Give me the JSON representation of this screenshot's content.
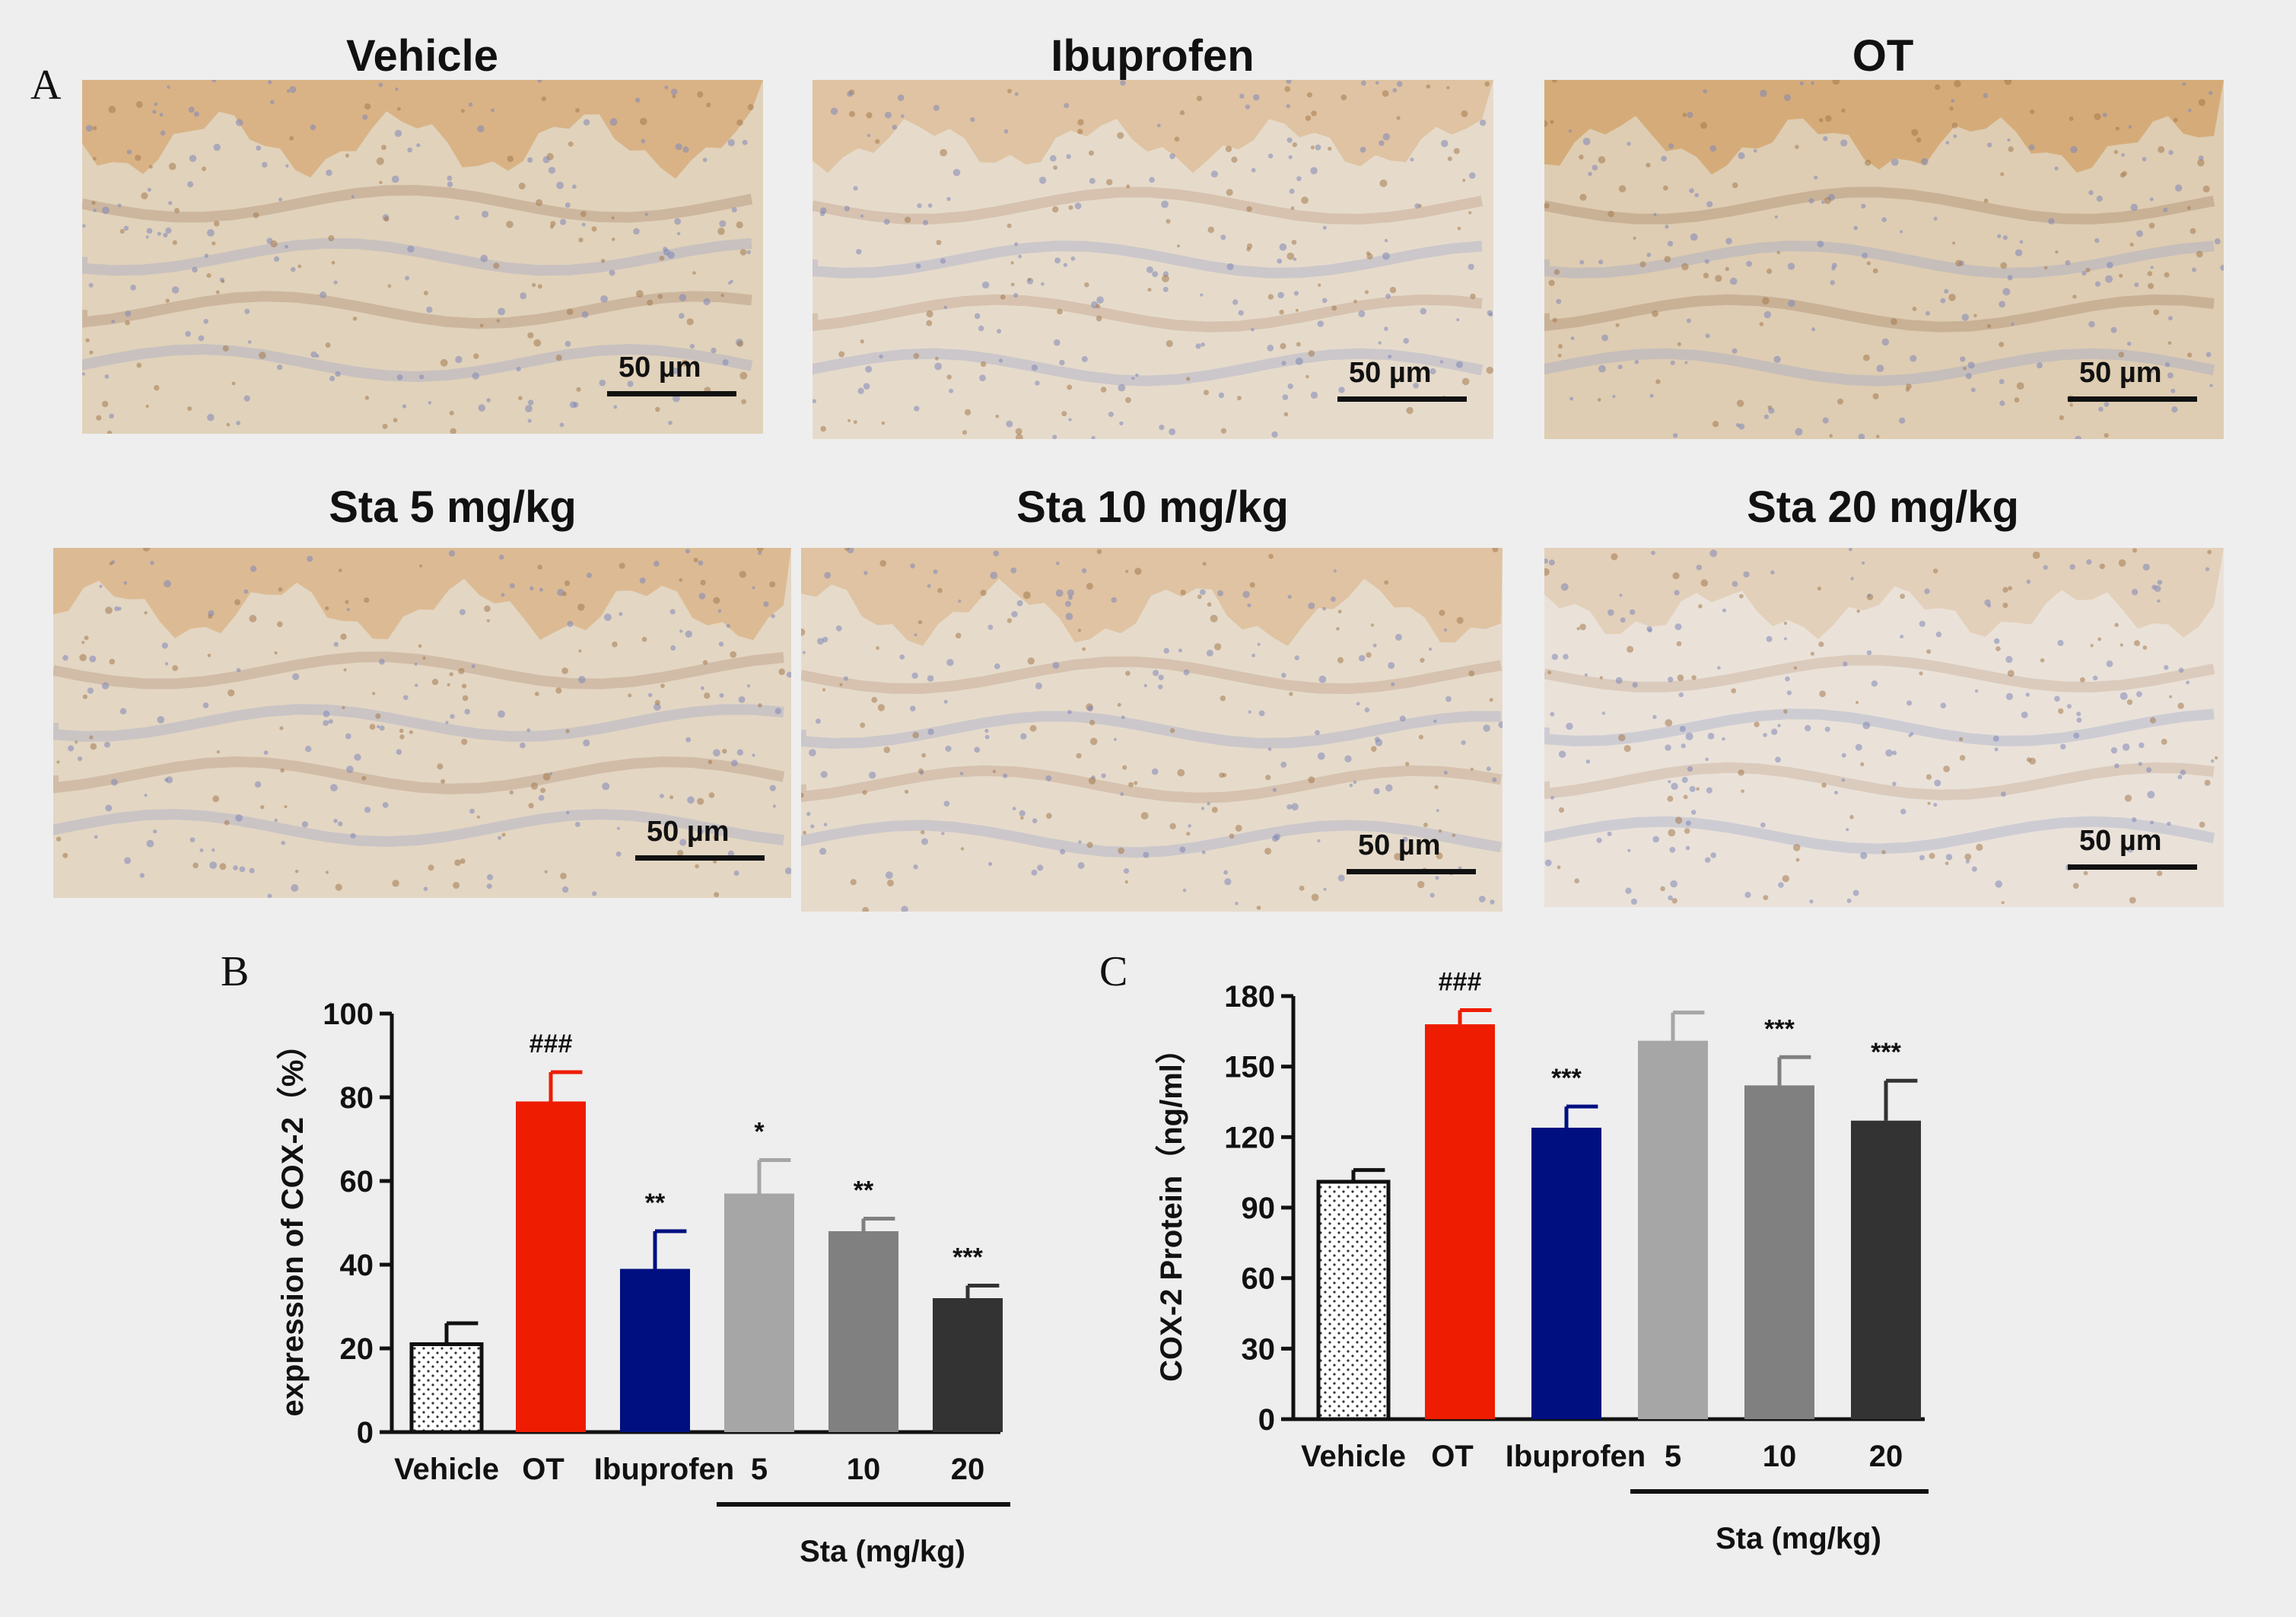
{
  "panel_a": {
    "letter": "A",
    "images": [
      {
        "title": "Vehicle",
        "scale": "50 µm",
        "stain": 0.75
      },
      {
        "title": "Ibuprofen",
        "scale": "50 µm",
        "stain": 0.45
      },
      {
        "title": "OT",
        "scale": "50 µm",
        "stain": 0.9
      },
      {
        "title": "Sta 5 mg/kg",
        "scale": "50 µm",
        "stain": 0.6
      },
      {
        "title": "Sta 10 mg/kg",
        "scale": "50 µm",
        "stain": 0.45
      },
      {
        "title": "Sta 20 mg/kg",
        "scale": "50 µm",
        "stain": 0.2
      }
    ]
  },
  "chart_data": [
    {
      "panel": "B",
      "type": "bar",
      "ylabel": "expression of COX-2（%）",
      "ylim": [
        0,
        100
      ],
      "yticks": [
        0,
        20,
        40,
        60,
        80,
        100
      ],
      "categories": [
        "Vehicle",
        "OT",
        "Ibuprofen",
        "5",
        "10",
        "20"
      ],
      "values": [
        21,
        79,
        39,
        57,
        48,
        32
      ],
      "errors": [
        5,
        7,
        9,
        8,
        3,
        3
      ],
      "annotations": [
        "",
        "###",
        "**",
        "*",
        "**",
        "***"
      ],
      "colors": [
        "#ffffff",
        "#ee1c00",
        "#000f80",
        "#a6a6a6",
        "#808080",
        "#333333"
      ],
      "group_label": "Sta (mg/kg)"
    },
    {
      "panel": "C",
      "type": "bar",
      "ylabel": "COX-2 Protein（ng/ml）",
      "ylim": [
        0,
        180
      ],
      "yticks": [
        0,
        30,
        60,
        90,
        120,
        150,
        180
      ],
      "categories": [
        "Vehicle",
        "OT",
        "Ibuprofen",
        "5",
        "10",
        "20"
      ],
      "values": [
        101,
        168,
        124,
        161,
        142,
        127
      ],
      "errors": [
        5,
        6,
        9,
        12,
        12,
        17
      ],
      "annotations": [
        "",
        "###",
        "***",
        "",
        "***",
        "***"
      ],
      "colors": [
        "#ffffff",
        "#ee1c00",
        "#000f80",
        "#a6a6a6",
        "#808080",
        "#333333"
      ],
      "group_label": "Sta (mg/kg)"
    }
  ]
}
